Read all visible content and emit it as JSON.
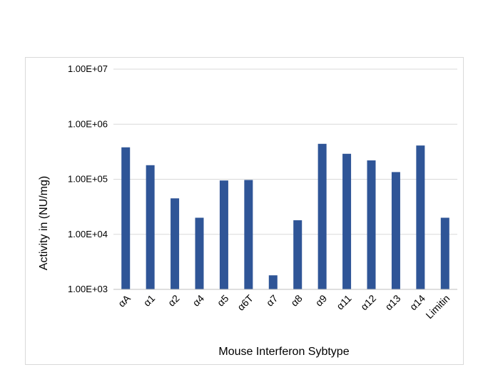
{
  "chart_data": {
    "type": "bar",
    "title": "",
    "xlabel": "Mouse Interferon Sybtype",
    "ylabel": "Activity in (NU/mg)",
    "yscale": "log",
    "ylim": [
      1000,
      10000000
    ],
    "yticks": [
      "1.00E+03",
      "1.00E+04",
      "1.00E+05",
      "1.00E+06",
      "1.00E+07"
    ],
    "grid": true,
    "legend": "none",
    "bar_color": "#2f5597",
    "categories": [
      "αA",
      "α1",
      "α2",
      "α4",
      "α5",
      "α6T",
      "α7",
      "α8",
      "α9",
      "α11",
      "α12",
      "α13",
      "α14",
      "Limitin"
    ],
    "values": [
      380000,
      180000,
      45000,
      20000,
      95000,
      97000,
      1800,
      18000,
      440000,
      290000,
      220000,
      135000,
      410000,
      20000
    ]
  }
}
